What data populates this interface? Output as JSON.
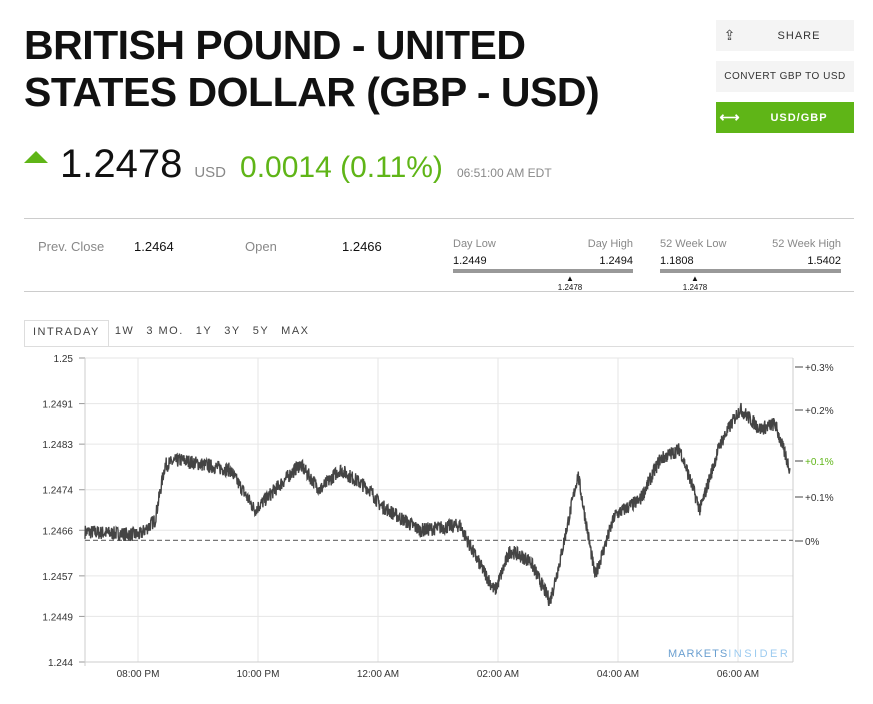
{
  "header": {
    "title": "British Pound - United States Dollar (GBP - USD)"
  },
  "actions": {
    "share": "SHARE",
    "convert": "CONVERT GBP TO USD",
    "swap": "USD/GBP",
    "share_icon": "share-icon",
    "swap_icon": "swap-arrows-icon"
  },
  "quote": {
    "price": "1.2478",
    "currency": "USD",
    "change": "0.0014 (0.11%)",
    "time": "06:51:00 AM EDT",
    "direction": "up",
    "up_color": "#5fb517"
  },
  "stats": {
    "prev_close_label": "Prev. Close",
    "prev_close": "1.2464",
    "open_label": "Open",
    "open": "1.2466",
    "day_low_label": "Day Low",
    "day_low": "1.2449",
    "day_high_label": "Day High",
    "day_high": "1.2494",
    "day_current": "1.2478",
    "wk52_low_label": "52 Week Low",
    "wk52_low": "1.1808",
    "wk52_high_label": "52 Week High",
    "wk52_high": "1.5402",
    "wk52_current": "1.2478"
  },
  "tabs": [
    "INTRADAY",
    "1W",
    "3 MO.",
    "1Y",
    "3Y",
    "5Y",
    "MAX"
  ],
  "watermark": {
    "a": "MARKETS",
    "b": "INSIDER"
  },
  "chart_data": {
    "type": "line",
    "yticks": [
      "1.25",
      "1.2491",
      "1.2483",
      "1.2474",
      "1.2466",
      "1.2457",
      "1.2449",
      "1.244"
    ],
    "ylim": [
      1.244,
      1.25
    ],
    "xticks": [
      "08:00 PM",
      "10:00 PM",
      "12:00 AM",
      "02:00 AM",
      "04:00 AM",
      "06:00 AM"
    ],
    "right_ticks": [
      "+0.3%",
      "+0.2%",
      "+0.1%",
      "+0.1%",
      "0%"
    ],
    "current_pct_label": "+0.1%",
    "baseline": 1.2464,
    "grid": true,
    "line_color": "#444444",
    "series": [
      {
        "points": [
          [
            "19:07",
            1.24657
          ],
          [
            "20:02",
            1.24651
          ],
          [
            "20:17",
            1.2468
          ],
          [
            "20:27",
            1.24789
          ],
          [
            "20:42",
            1.24799
          ],
          [
            "21:32",
            1.24779
          ],
          [
            "21:57",
            1.247
          ],
          [
            "22:42",
            1.2479
          ],
          [
            "23:02",
            1.2474
          ],
          [
            "23:22",
            1.2478
          ],
          [
            "23:52",
            1.2474
          ],
          [
            "00:02",
            1.2471
          ],
          [
            "00:42",
            1.2466
          ],
          [
            "01:22",
            1.2467
          ],
          [
            "01:37",
            1.2461
          ],
          [
            "01:57",
            1.2454
          ],
          [
            "02:12",
            1.2462
          ],
          [
            "02:32",
            1.246
          ],
          [
            "02:52",
            1.2452
          ],
          [
            "03:02",
            1.246
          ],
          [
            "03:20",
            1.2477
          ],
          [
            "03:37",
            1.2457
          ],
          [
            "03:57",
            1.2469
          ],
          [
            "04:22",
            1.2472
          ],
          [
            "04:42",
            1.248
          ],
          [
            "05:02",
            1.2482
          ],
          [
            "05:22",
            1.247
          ],
          [
            "05:42",
            1.2483
          ],
          [
            "06:02",
            1.249
          ],
          [
            "06:22",
            1.2486
          ],
          [
            "06:37",
            1.2487
          ],
          [
            "06:52",
            1.2478
          ]
        ]
      }
    ]
  }
}
